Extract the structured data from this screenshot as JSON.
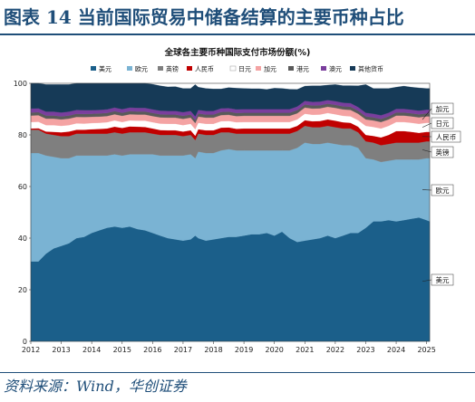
{
  "figure": {
    "title": "图表 14   当前国际贸易中储备结算的主要币种占比",
    "source": "资料来源：Wind，华创证券"
  },
  "colors": {
    "usd": "#1b5f8a",
    "eur": "#7ab3d3",
    "gbp": "#7f7f7f",
    "cny": "#c00000",
    "jpy": "#ffffff",
    "cad": "#f4a3a3",
    "hkd": "#5a5a5a",
    "aud": "#7a3e9d",
    "other": "#163a57",
    "accent": "#1f4e79"
  },
  "chart_data": {
    "type": "area",
    "stacked": true,
    "title": "全球各主要币种国际支付市场份额(%)",
    "xlabel": "",
    "ylabel": "",
    "ylim": [
      0,
      100
    ],
    "yticks": [
      0,
      20,
      40,
      60,
      80,
      100
    ],
    "xlim": [
      2012,
      2025.1
    ],
    "xticks": [
      "2012",
      "2013",
      "2014",
      "2015",
      "2016",
      "2017",
      "2018",
      "2019",
      "2020",
      "2021",
      "2022",
      "2023",
      "2024",
      "2025"
    ],
    "grid": false,
    "legend": "top",
    "x": [
      2012.0,
      2012.25,
      2012.5,
      2012.75,
      2013.0,
      2013.25,
      2013.5,
      2013.75,
      2014.0,
      2014.25,
      2014.5,
      2014.75,
      2015.0,
      2015.25,
      2015.5,
      2015.75,
      2016.0,
      2016.25,
      2016.5,
      2016.75,
      2017.0,
      2017.25,
      2017.4,
      2017.5,
      2017.75,
      2018.0,
      2018.25,
      2018.5,
      2018.75,
      2019.0,
      2019.25,
      2019.5,
      2019.75,
      2020.0,
      2020.25,
      2020.5,
      2020.75,
      2021.0,
      2021.25,
      2021.5,
      2021.75,
      2022.0,
      2022.25,
      2022.5,
      2022.75,
      2023.0,
      2023.25,
      2023.5,
      2023.75,
      2024.0,
      2024.25,
      2024.5,
      2024.75,
      2025.0,
      2025.1
    ],
    "series": [
      {
        "name": "美元",
        "key": "usd",
        "label": "美元",
        "values": [
          31,
          31,
          34,
          36,
          37,
          38,
          40,
          40.5,
          42,
          43,
          44,
          44.5,
          44,
          44.5,
          43.5,
          43,
          42,
          41,
          40,
          39.5,
          39,
          39.5,
          41,
          40,
          39,
          39.5,
          40,
          40.5,
          40.5,
          41,
          41.5,
          41.5,
          42,
          41,
          42.5,
          40,
          38.5,
          39,
          39.5,
          40,
          41,
          40,
          41,
          42,
          42,
          44,
          46.5,
          46.5,
          47,
          46.5,
          47,
          47.5,
          48,
          47,
          46.5
        ]
      },
      {
        "name": "欧元",
        "key": "eur",
        "label": "欧元",
        "values": [
          42,
          42,
          38,
          35.5,
          34,
          33,
          32,
          31.5,
          30,
          29,
          28,
          28,
          28,
          28,
          29,
          29.5,
          30.5,
          31,
          32,
          32.5,
          33,
          33,
          30,
          33.5,
          34,
          33.5,
          34,
          34,
          33.5,
          33,
          32.5,
          32.5,
          32,
          33,
          31.5,
          34,
          36.5,
          38,
          37,
          36.5,
          36,
          36.5,
          35,
          34,
          33,
          27,
          24,
          23,
          23,
          24,
          23.5,
          23,
          22.5,
          24,
          24.5
        ]
      },
      {
        "name": "英镑",
        "key": "gbp",
        "label": "英镑",
        "values": [
          9,
          9,
          8.5,
          8.5,
          8.5,
          8.5,
          8.5,
          8.5,
          8.5,
          8.5,
          8.5,
          8.5,
          8.5,
          8.5,
          8.5,
          8.5,
          8,
          8,
          8,
          8,
          7.5,
          7.5,
          7,
          7,
          7,
          7,
          7,
          6.5,
          6.5,
          6.5,
          6.5,
          6.5,
          6.5,
          6.5,
          6.5,
          6.5,
          6.5,
          6.5,
          6.5,
          6.5,
          6.5,
          6.5,
          6.5,
          6.5,
          6,
          6.5,
          6.5,
          6.5,
          6.5,
          6.5,
          6.5,
          6.5,
          6.5,
          6.5,
          6.5
        ]
      },
      {
        "name": "人民币",
        "key": "cny",
        "label": "人民币",
        "values": [
          0.5,
          0.6,
          0.8,
          1.2,
          1.5,
          1.8,
          1.5,
          1.5,
          1.7,
          1.8,
          2,
          2.2,
          2.2,
          2.3,
          2.2,
          2.1,
          2,
          1.9,
          1.8,
          1.8,
          1.8,
          1.8,
          1.7,
          1.7,
          1.8,
          1.8,
          1.8,
          1.9,
          1.9,
          2,
          2,
          2,
          2,
          2,
          2,
          2,
          2,
          2.2,
          2.3,
          2.4,
          2.5,
          2.5,
          2.4,
          2.2,
          2.2,
          2.5,
          2.6,
          3,
          3.5,
          4.5,
          4.5,
          4.2,
          3.8,
          3.7,
          3.7
        ]
      },
      {
        "name": "日元",
        "key": "jpy",
        "label": "日元",
        "values": [
          2.5,
          2.5,
          2.5,
          2.6,
          2.5,
          2.5,
          2.5,
          2.4,
          2.4,
          2.4,
          2.4,
          2.4,
          2.3,
          2.3,
          2.3,
          2.4,
          2.4,
          2.5,
          2.5,
          2.5,
          2.5,
          2.5,
          2.5,
          2.5,
          2.5,
          2.5,
          2.5,
          2.5,
          2.5,
          2.5,
          2.5,
          2.5,
          2.5,
          2.5,
          2.5,
          2.5,
          2.5,
          2.5,
          2.5,
          2.5,
          2.5,
          2.5,
          2.5,
          2.5,
          2.5,
          3.5,
          3.5,
          3.5,
          3.5,
          3.5,
          3.5,
          3.5,
          3.5,
          3.5,
          3.5
        ]
      },
      {
        "name": "加元",
        "key": "cad",
        "label": "加元",
        "values": [
          2.5,
          2.5,
          2.5,
          2.5,
          2.5,
          2.5,
          2.5,
          2.5,
          2.4,
          2.4,
          2.4,
          2.4,
          2.4,
          2.4,
          2.4,
          2.4,
          2.4,
          2.4,
          2.4,
          2.4,
          2.4,
          2.4,
          2.4,
          2.4,
          2.4,
          2.4,
          2.4,
          2.4,
          2.4,
          2.4,
          2.4,
          2.4,
          2.4,
          2.4,
          2.4,
          2.4,
          2.4,
          2.4,
          2.4,
          2.4,
          2.4,
          2.5,
          2.5,
          2.5,
          2.5,
          2.5,
          2.5,
          2.5,
          2.5,
          2.5,
          2.5,
          2.5,
          2.5,
          2.5,
          2.5
        ]
      },
      {
        "name": "港元",
        "key": "hkd",
        "label": "港元",
        "values": [
          1.2,
          1.2,
          1.2,
          1.2,
          1.2,
          1.2,
          1.2,
          1.2,
          1.2,
          1.2,
          1.2,
          1.2,
          1.2,
          1.2,
          1.2,
          1.2,
          1.2,
          1.2,
          1.2,
          1.2,
          1.2,
          1.2,
          1.2,
          1.2,
          1.2,
          1.2,
          1.2,
          1.2,
          1.2,
          1.2,
          1.2,
          1.2,
          1.2,
          1.2,
          1.2,
          1.2,
          1.2,
          1.2,
          1.2,
          1.2,
          1.2,
          1.2,
          1.2,
          1.2,
          1.2,
          1.2,
          1.2,
          1.2,
          1.2,
          1.2,
          1.2,
          1.2,
          1.2,
          1.2,
          1.2
        ]
      },
      {
        "name": "澳元",
        "key": "aud",
        "label": "澳元",
        "values": [
          1.5,
          1.5,
          1.5,
          1.5,
          1.5,
          1.5,
          1.5,
          1.5,
          1.4,
          1.4,
          1.4,
          1.4,
          1.4,
          1.4,
          1.4,
          1.4,
          1.4,
          1.4,
          1.4,
          1.4,
          1.4,
          1.4,
          1.4,
          1.4,
          1.4,
          1.4,
          1.4,
          1.4,
          1.4,
          1.4,
          1.4,
          1.4,
          1.4,
          1.4,
          1.4,
          1.4,
          1.4,
          1.4,
          1.4,
          1.4,
          1.4,
          1.4,
          1.4,
          1.4,
          1.4,
          1.4,
          1.4,
          1.4,
          1.4,
          1.4,
          1.4,
          1.4,
          1.4,
          1.4,
          1.4
        ]
      },
      {
        "name": "其他货币",
        "key": "other",
        "label": "",
        "values": [
          9.8,
          9.7,
          10.5,
          10.5,
          10.8,
          10.5,
          10.3,
          10.4,
          10.4,
          10.3,
          10.1,
          9.7,
          10,
          9.4,
          9.5,
          9.5,
          9.7,
          9.6,
          9.3,
          9.4,
          9.2,
          8.7,
          12.3,
          8.8,
          8.7,
          8.5,
          7.5,
          7.9,
          8.2,
          8,
          7.9,
          7.9,
          7.6,
          8.1,
          8,
          7.7,
          6.6,
          5.7,
          6.2,
          6.1,
          5.8,
          6.4,
          6.6,
          6.8,
          8.2,
          10.9,
          9.8,
          10.4,
          9.4,
          8.4,
          8.8,
          8.7,
          8.8,
          8.2,
          8.2
        ]
      }
    ],
    "callouts": [
      "加元",
      "日元",
      "人民币",
      "英镑",
      "欧元",
      "美元"
    ]
  }
}
